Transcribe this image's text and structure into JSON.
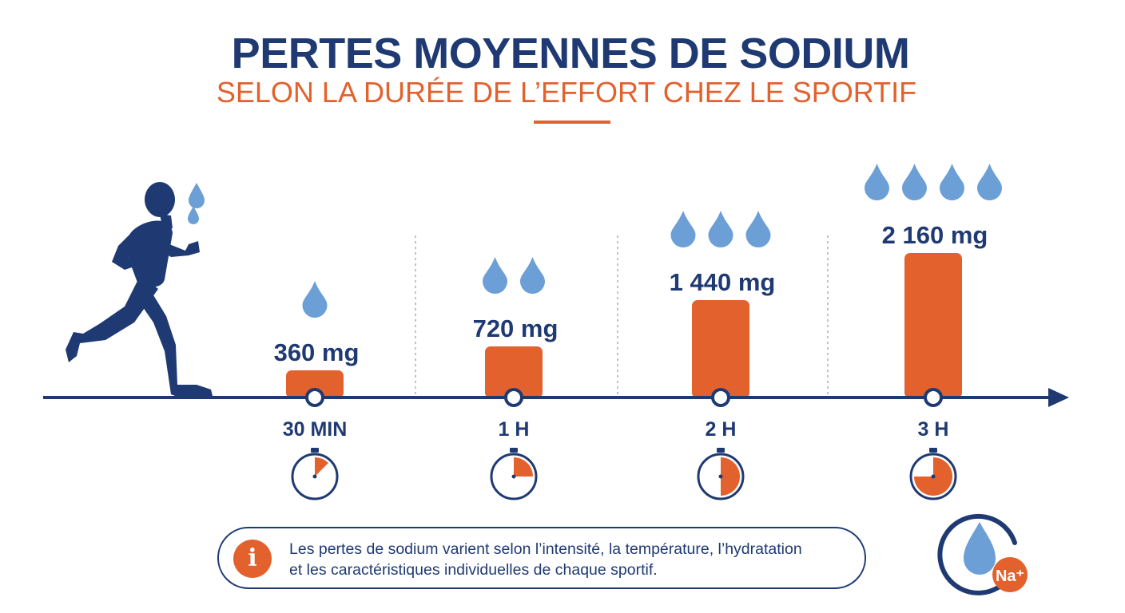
{
  "title": "PERTES MOYENNES DE SODIUM",
  "subtitle": "SELON LA DURÉE DE L’EFFORT CHEZ LE SPORTIF",
  "colors": {
    "navy": "#1f3a73",
    "orange": "#e2612d",
    "drop": "#6c9fd6",
    "divider": "#9a9a9a"
  },
  "icons": {
    "runner": "runner-silhouette-icon",
    "drop": "water-drop-icon",
    "timer": "stopwatch-icon",
    "info": "info-icon",
    "sodium": "sodium-drop-badge-icon"
  },
  "chart_data": {
    "type": "bar",
    "categories": [
      "30 MIN",
      "1 H",
      "2 H",
      "3 H"
    ],
    "values": [
      360,
      720,
      1440,
      2160
    ],
    "value_labels": [
      "360 mg",
      "720 mg",
      "1 440 mg",
      "2 160 mg"
    ],
    "drops": [
      1,
      2,
      3,
      4
    ],
    "durations_hours": [
      0.5,
      1,
      2,
      3
    ],
    "unit": "mg",
    "grid": false,
    "legend": "none"
  },
  "info": {
    "icon_glyph": "i",
    "lines": [
      "Les pertes de sodium varient selon l’intensité, la température, l’hydratation",
      "et les caractéristiques individuelles de chaque sportif."
    ]
  },
  "badge": {
    "label": "Na⁺"
  }
}
